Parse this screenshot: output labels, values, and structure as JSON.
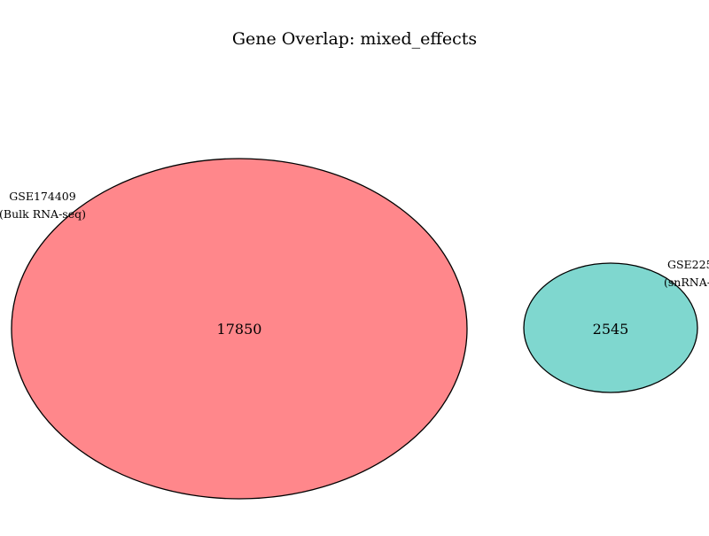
{
  "title": "Gene Overlap: mixed_effects",
  "sets": [
    {
      "name": "GSE174409",
      "subtitle": "(Bulk RNA-seq)",
      "count": "17850",
      "color": "#ff878b"
    },
    {
      "name": "GSE225",
      "subtitle": "(snRNA-",
      "count": "2545",
      "color": "#7fd7cf"
    }
  ],
  "overlap": null,
  "colors": {
    "outline": "#000000",
    "background": "#ffffff"
  }
}
